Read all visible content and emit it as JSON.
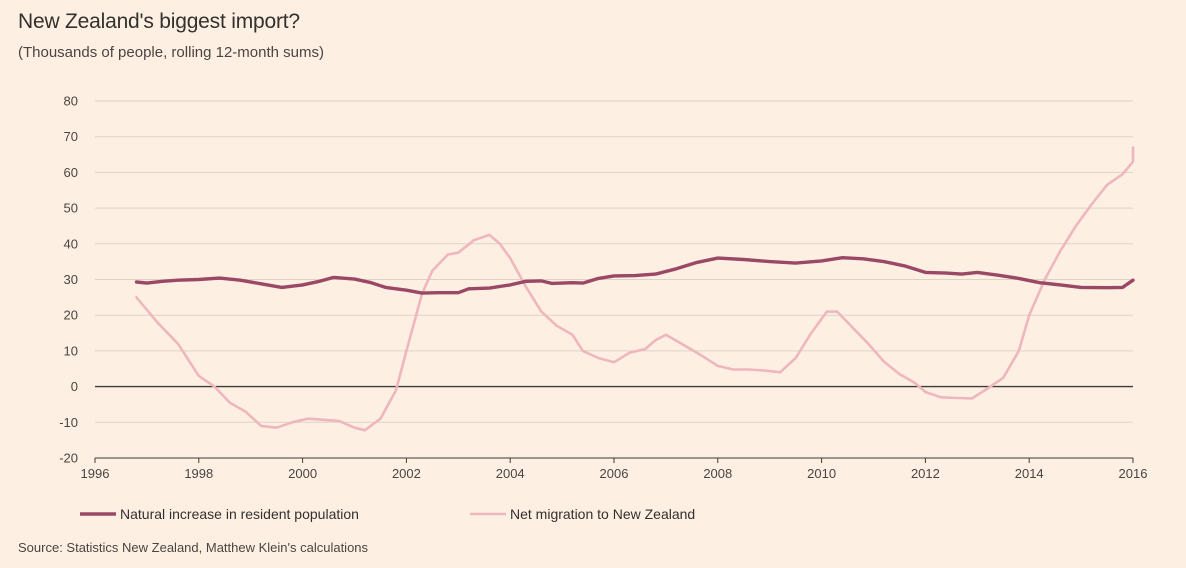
{
  "title": "New Zealand's biggest import?",
  "subtitle": "(Thousands of people, rolling 12-month sums)",
  "source": "Source: Statistics New Zealand, Matthew Klein's calculations",
  "chart_data": {
    "type": "line",
    "title": "New Zealand's biggest import?",
    "subtitle": "(Thousands of people, rolling 12-month sums)",
    "xlim": [
      1996,
      2016
    ],
    "ylim": [
      -20,
      80
    ],
    "x_ticks": [
      "1996",
      "1998",
      "2000",
      "2002",
      "2004",
      "2006",
      "2008",
      "2010",
      "2012",
      "2014",
      "2016"
    ],
    "y_ticks": [
      "-20",
      "-10",
      "0",
      "10",
      "20",
      "30",
      "40",
      "50",
      "60",
      "70",
      "80"
    ],
    "grid": "horizontal",
    "legend_position": "bottom",
    "series": [
      {
        "name": "Natural increase in resident population",
        "color": "#9b4866",
        "points": [
          [
            1996.8,
            29.3
          ],
          [
            1997.0,
            29
          ],
          [
            1997.3,
            29.5
          ],
          [
            1997.6,
            29.8
          ],
          [
            1998.0,
            30
          ],
          [
            1998.4,
            30.4
          ],
          [
            1998.8,
            29.8
          ],
          [
            1999.2,
            28.8
          ],
          [
            1999.6,
            27.8
          ],
          [
            2000.0,
            28.5
          ],
          [
            2000.3,
            29.4
          ],
          [
            2000.6,
            30.6
          ],
          [
            2001.0,
            30.1
          ],
          [
            2001.3,
            29.2
          ],
          [
            2001.6,
            27.8
          ],
          [
            2002.0,
            27
          ],
          [
            2002.3,
            26.2
          ],
          [
            2002.6,
            26.3
          ],
          [
            2003.0,
            26.3
          ],
          [
            2003.2,
            27.4
          ],
          [
            2003.6,
            27.6
          ],
          [
            2004.0,
            28.5
          ],
          [
            2004.3,
            29.5
          ],
          [
            2004.6,
            29.6
          ],
          [
            2004.8,
            28.9
          ],
          [
            2005.2,
            29.1
          ],
          [
            2005.4,
            29.0
          ],
          [
            2005.7,
            30.3
          ],
          [
            2006.0,
            31
          ],
          [
            2006.4,
            31.1
          ],
          [
            2006.8,
            31.5
          ],
          [
            2007.2,
            33
          ],
          [
            2007.6,
            34.8
          ],
          [
            2008.0,
            36
          ],
          [
            2008.5,
            35.6
          ],
          [
            2009.0,
            35
          ],
          [
            2009.5,
            34.6
          ],
          [
            2010.0,
            35.2
          ],
          [
            2010.4,
            36.1
          ],
          [
            2010.8,
            35.8
          ],
          [
            2011.2,
            35
          ],
          [
            2011.6,
            33.8
          ],
          [
            2012.0,
            32
          ],
          [
            2012.4,
            31.8
          ],
          [
            2012.7,
            31.5
          ],
          [
            2013.0,
            32
          ],
          [
            2013.4,
            31.2
          ],
          [
            2013.8,
            30.3
          ],
          [
            2014.2,
            29.1
          ],
          [
            2014.6,
            28.5
          ],
          [
            2015.0,
            27.8
          ],
          [
            2015.5,
            27.7
          ],
          [
            2015.8,
            27.8
          ],
          [
            2016.0,
            29.8
          ]
        ]
      },
      {
        "name": "Net migration to New Zealand",
        "color": "#eeb6bd",
        "points": [
          [
            1996.8,
            25
          ],
          [
            1997.2,
            18
          ],
          [
            1997.6,
            12
          ],
          [
            1998.0,
            3
          ],
          [
            1998.3,
            0
          ],
          [
            1998.6,
            -4.5
          ],
          [
            1998.9,
            -7
          ],
          [
            1999.2,
            -11
          ],
          [
            1999.5,
            -11.5
          ],
          [
            1999.8,
            -10
          ],
          [
            2000.1,
            -9
          ],
          [
            2000.4,
            -9.3
          ],
          [
            2000.7,
            -9.6
          ],
          [
            2001.0,
            -11.5
          ],
          [
            2001.2,
            -12.2
          ],
          [
            2001.5,
            -9
          ],
          [
            2001.8,
            -1
          ],
          [
            2002.0,
            10
          ],
          [
            2002.3,
            26
          ],
          [
            2002.5,
            32.5
          ],
          [
            2002.8,
            37
          ],
          [
            2003.0,
            37.5
          ],
          [
            2003.3,
            41
          ],
          [
            2003.6,
            42.5
          ],
          [
            2003.8,
            40
          ],
          [
            2004.0,
            36
          ],
          [
            2004.3,
            28
          ],
          [
            2004.6,
            21
          ],
          [
            2004.9,
            17
          ],
          [
            2005.2,
            14.5
          ],
          [
            2005.4,
            10
          ],
          [
            2005.7,
            8
          ],
          [
            2006.0,
            6.8
          ],
          [
            2006.3,
            9.5
          ],
          [
            2006.6,
            10.5
          ],
          [
            2006.8,
            13
          ],
          [
            2007.0,
            14.5
          ],
          [
            2007.3,
            12
          ],
          [
            2007.6,
            9.5
          ],
          [
            2008.0,
            5.8
          ],
          [
            2008.3,
            4.8
          ],
          [
            2008.6,
            4.8
          ],
          [
            2008.9,
            4.5
          ],
          [
            2009.2,
            4
          ],
          [
            2009.5,
            8
          ],
          [
            2009.8,
            15
          ],
          [
            2010.1,
            21
          ],
          [
            2010.3,
            21
          ],
          [
            2010.6,
            16.5
          ],
          [
            2010.9,
            12
          ],
          [
            2011.2,
            7
          ],
          [
            2011.5,
            3.5
          ],
          [
            2011.8,
            1
          ],
          [
            2012.0,
            -1.5
          ],
          [
            2012.3,
            -3
          ],
          [
            2012.6,
            -3.2
          ],
          [
            2012.9,
            -3.3
          ],
          [
            2013.2,
            -0.5
          ],
          [
            2013.5,
            2.5
          ],
          [
            2013.8,
            10
          ],
          [
            2014.0,
            20
          ],
          [
            2014.3,
            30
          ],
          [
            2014.6,
            38
          ],
          [
            2014.9,
            45
          ],
          [
            2015.2,
            51
          ],
          [
            2015.5,
            56.5
          ],
          [
            2015.8,
            59.5
          ],
          [
            2016.0,
            63
          ],
          [
            2016.3,
            67
          ]
        ]
      }
    ]
  }
}
